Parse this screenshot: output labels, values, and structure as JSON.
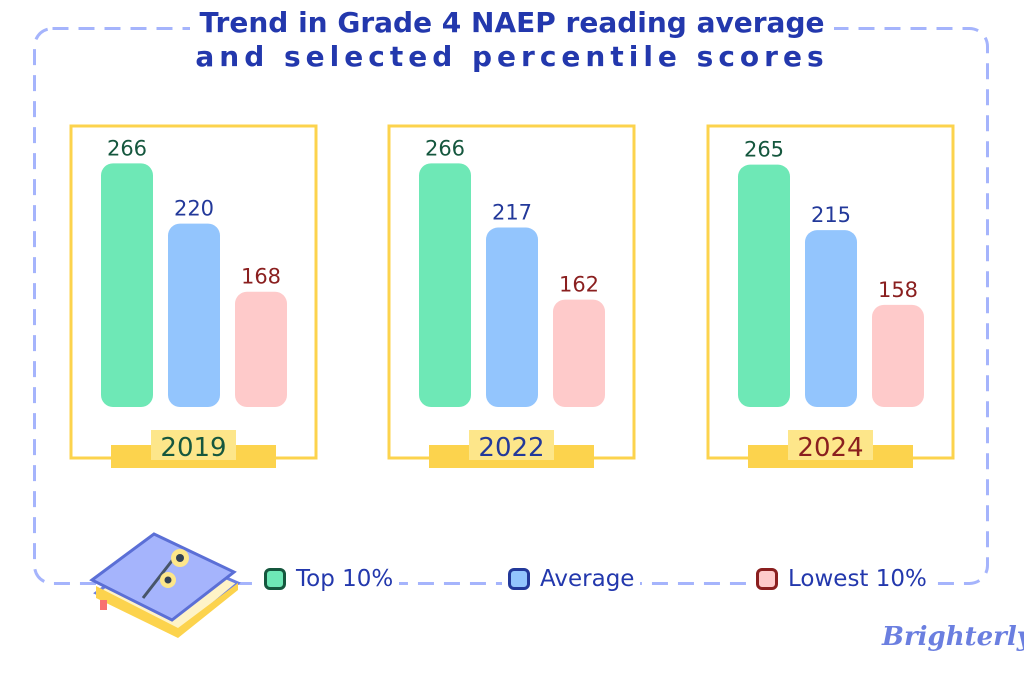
{
  "chart_data": {
    "type": "bar",
    "title": [
      "Trend in Grade 4 NAEP reading average",
      "and selected percentile scores"
    ],
    "categories": [
      "2019",
      "2022",
      "2024"
    ],
    "series": [
      {
        "name": "Top 10%",
        "values": [
          266,
          266,
          265
        ],
        "color": "#6ee8b6",
        "label_color": "#15573e"
      },
      {
        "name": "Average",
        "values": [
          220,
          217,
          215
        ],
        "color": "#93c5fd",
        "label_color": "#23399a"
      },
      {
        "name": "Lowest 10%",
        "values": [
          168,
          162,
          158
        ],
        "color": "#fecaca",
        "label_color": "#8a1f1f"
      }
    ],
    "year_label_colors": [
      "#15573e",
      "#23399a",
      "#8a1f1f"
    ],
    "panel_border_color": "#fcd34d",
    "legend_placement": "bottom"
  },
  "legend": [
    {
      "label": "Top 10%",
      "fill": "#6ee8b6",
      "border": "#15573e"
    },
    {
      "label": "Average",
      "fill": "#93c5fd",
      "border": "#23399a"
    },
    {
      "label": "Lowest 10%",
      "fill": "#fecaca",
      "border": "#8a1f1f"
    }
  ],
  "brand": "Brighterly",
  "icons": [
    "book-icon"
  ]
}
